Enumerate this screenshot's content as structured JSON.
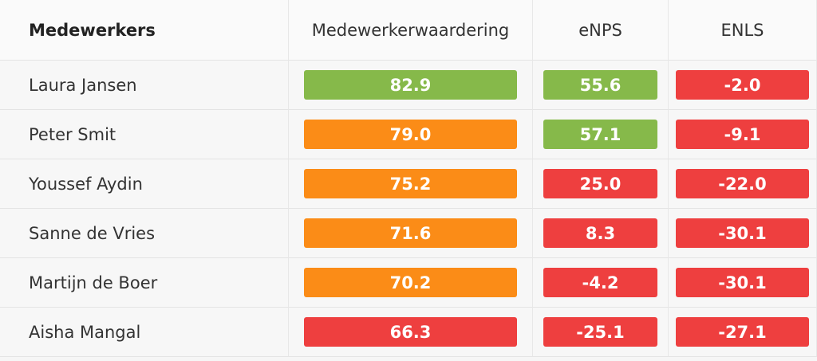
{
  "header": {
    "columns": [
      "Medewerkers",
      "Medewerkerwaardering",
      "eNPS",
      "ENLS"
    ]
  },
  "table": {
    "rows": [
      {
        "name": "Laura Jansen",
        "values": [
          "82.9",
          "55.6",
          "-2.0"
        ],
        "colors": [
          "#86b94a",
          "#86b94a",
          "#ee3f3f"
        ]
      },
      {
        "name": "Peter Smit",
        "values": [
          "79.0",
          "57.1",
          "-9.1"
        ],
        "colors": [
          "#fb8c17",
          "#86b94a",
          "#ee3f3f"
        ]
      },
      {
        "name": "Youssef Aydin",
        "values": [
          "75.2",
          "25.0",
          "-22.0"
        ],
        "colors": [
          "#fb8c17",
          "#ee3f3f",
          "#ee3f3f"
        ]
      },
      {
        "name": "Sanne de Vries",
        "values": [
          "71.6",
          "8.3",
          "-30.1"
        ],
        "colors": [
          "#fb8c17",
          "#ee3f3f",
          "#ee3f3f"
        ]
      },
      {
        "name": "Martijn de Boer",
        "values": [
          "70.2",
          "-4.2",
          "-30.1"
        ],
        "colors": [
          "#fb8c17",
          "#ee3f3f",
          "#ee3f3f"
        ]
      },
      {
        "name": "Aisha Mangal",
        "values": [
          "66.3",
          "-25.1",
          "-27.1"
        ],
        "colors": [
          "#ee3f3f",
          "#ee3f3f",
          "#ee3f3f"
        ]
      }
    ]
  }
}
